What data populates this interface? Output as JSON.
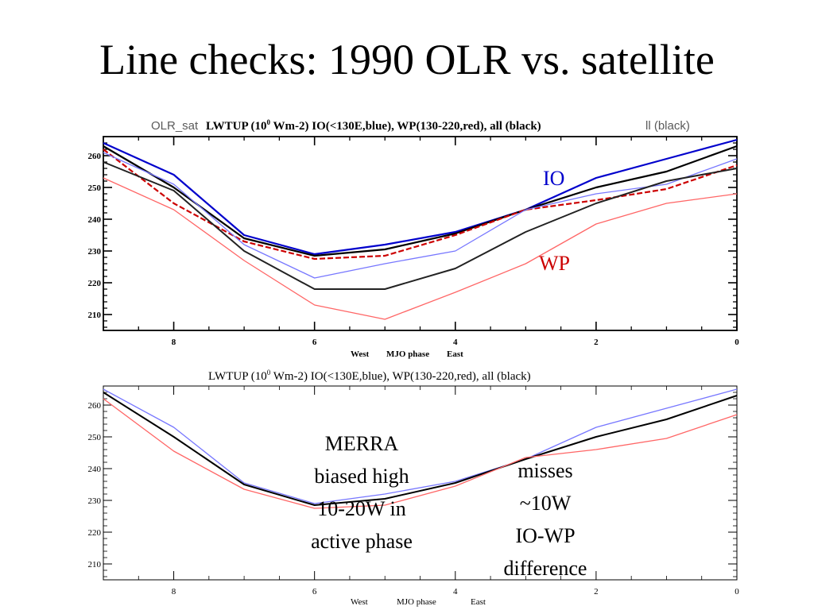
{
  "slide": {
    "title": "Line checks: 1990 OLR vs. satellite"
  },
  "colors": {
    "dark_blue": "#0000cc",
    "light_blue": "#7777ff",
    "dark_red": "#cc0000",
    "light_red": "#ff6666",
    "black": "#000000",
    "gray": "#555555"
  },
  "chart_data": [
    {
      "type": "line",
      "title_underlay": "OLR_sat",
      "title_underlay_right": "ll (black)",
      "title": "LWTUP (10",
      "title_sup": "0",
      "title_rest": " Wm-2) IO(<130E,blue), WP(130-220,red), all (black)",
      "xlabel_west": "West",
      "xlabel_mid": "MJO phase",
      "xlabel_east": "East",
      "x_reversed": true,
      "xlim": [
        0,
        9
      ],
      "ylim": [
        205,
        266
      ],
      "yticks": [
        210,
        220,
        230,
        240,
        250,
        260
      ],
      "xticks": [
        8,
        6,
        4,
        2,
        0
      ],
      "x": [
        9,
        8,
        7,
        6,
        5,
        4,
        3,
        2,
        1,
        0
      ],
      "series": [
        {
          "color": "#0000cc",
          "width": 2.2,
          "values": [
            264,
            254,
            235,
            229,
            232,
            236,
            243,
            253,
            259,
            265
          ]
        },
        {
          "color": "#000000",
          "width": 2.2,
          "values": [
            263,
            250,
            234,
            228.5,
            230.5,
            235.5,
            243,
            250,
            255,
            263
          ]
        },
        {
          "color": "#cc0000",
          "width": 2.2,
          "dashed": true,
          "values": [
            262,
            245,
            233,
            227.5,
            228.5,
            235,
            243,
            246,
            249.5,
            257
          ]
        },
        {
          "color": "#7777ff",
          "width": 1.3,
          "values": [
            261,
            251,
            232,
            221.5,
            226,
            230,
            243,
            248,
            251,
            259
          ]
        },
        {
          "color": "#222222",
          "width": 2.0,
          "values": [
            258,
            249,
            230,
            218,
            218,
            224.5,
            236,
            245,
            252,
            256
          ]
        },
        {
          "color": "#ff6666",
          "width": 1.3,
          "values": [
            253,
            243,
            227,
            213,
            208.5,
            217,
            226,
            238.5,
            245,
            248
          ]
        }
      ],
      "labels": {
        "io": "IO",
        "wp": "WP"
      }
    },
    {
      "type": "line",
      "title": "LWTUP (10",
      "title_sup": "0",
      "title_rest": " Wm-2) IO(<130E,blue), WP(130-220,red), all (black)",
      "xlabel_west": "West",
      "xlabel_mid": "MJO phase",
      "xlabel_east": "East",
      "x_reversed": true,
      "xlim": [
        0,
        9
      ],
      "ylim": [
        205,
        266
      ],
      "yticks": [
        210,
        220,
        230,
        240,
        250,
        260
      ],
      "xticks": [
        8,
        6,
        4,
        2,
        0
      ],
      "x": [
        9,
        8,
        7,
        6,
        5,
        4,
        3,
        2,
        1,
        0
      ],
      "series": [
        {
          "color": "#7777ff",
          "width": 1.3,
          "values": [
            265,
            253,
            235.5,
            229,
            232,
            236,
            243,
            253,
            259,
            265
          ]
        },
        {
          "color": "#000000",
          "width": 2.0,
          "values": [
            264,
            250,
            235,
            228.5,
            230.5,
            235.5,
            243,
            250,
            255.5,
            263
          ]
        },
        {
          "color": "#ff6666",
          "width": 1.3,
          "values": [
            262,
            245.5,
            233.5,
            227.5,
            228.5,
            234.5,
            243.5,
            246,
            249.5,
            257
          ]
        }
      ],
      "annotations": {
        "merra": [
          "MERRA",
          "biased high",
          "10-20W in",
          "active phase"
        ],
        "misses": [
          "misses",
          "~10W",
          "IO-WP",
          "difference"
        ]
      }
    }
  ]
}
